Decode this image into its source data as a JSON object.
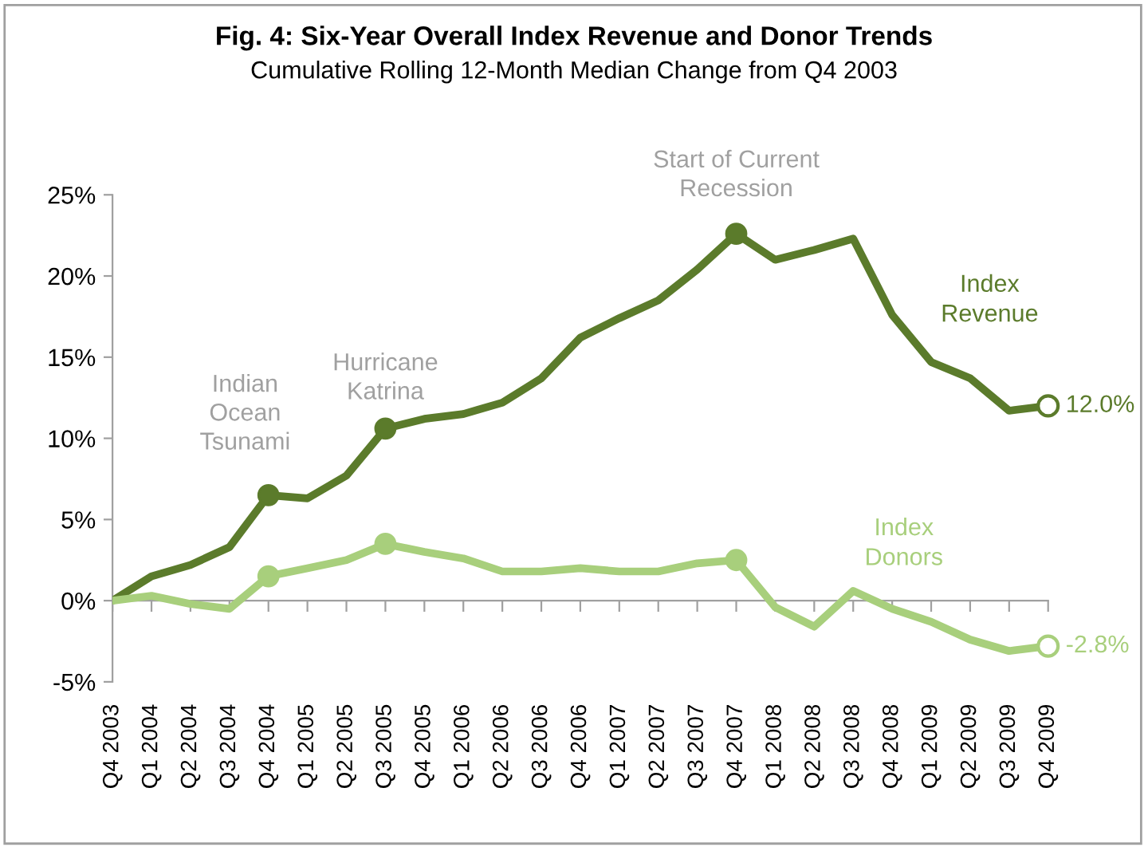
{
  "chart_data": {
    "type": "line",
    "title": "Fig. 4: Six-Year Overall Index Revenue and Donor Trends",
    "subtitle": "Cumulative Rolling 12-Month Median Change from Q4 2003",
    "categories": [
      "Q4 2003",
      "Q1 2004",
      "Q2 2004",
      "Q3 2004",
      "Q4 2004",
      "Q1 2005",
      "Q2 2005",
      "Q3 2005",
      "Q4 2005",
      "Q1 2006",
      "Q2 2006",
      "Q3 2006",
      "Q4 2006",
      "Q1 2007",
      "Q2 2007",
      "Q3 2007",
      "Q4 2007",
      "Q1 2008",
      "Q2 2008",
      "Q3 2008",
      "Q4 2008",
      "Q1 2009",
      "Q2 2009",
      "Q3 2009",
      "Q4 2009"
    ],
    "series": [
      {
        "name": "Index Revenue",
        "color": "#5b7b2b",
        "values": [
          0,
          1.5,
          2.2,
          3.3,
          6.5,
          6.3,
          7.7,
          10.6,
          11.2,
          11.5,
          12.2,
          13.7,
          16.2,
          17.4,
          18.5,
          20.4,
          22.6,
          21.0,
          21.6,
          22.3,
          17.6,
          14.7,
          13.7,
          11.7,
          12.0
        ],
        "value_labels": [
          null,
          null,
          null,
          null,
          null,
          null,
          null,
          null,
          null,
          null,
          null,
          null,
          null,
          null,
          null,
          null,
          null,
          null,
          null,
          null,
          null,
          null,
          null,
          null,
          "12.0%"
        ]
      },
      {
        "name": "Index Donors",
        "color": "#a8cf7c",
        "values": [
          0,
          0.3,
          -0.2,
          -0.5,
          1.5,
          2.0,
          2.5,
          3.5,
          3.0,
          2.6,
          1.8,
          1.8,
          2.0,
          1.8,
          1.8,
          2.3,
          2.5,
          -0.4,
          -1.6,
          0.6,
          -0.5,
          -1.3,
          -2.4,
          -3.1,
          -2.8
        ],
        "value_labels": [
          null,
          null,
          null,
          null,
          null,
          null,
          null,
          null,
          null,
          null,
          null,
          null,
          null,
          null,
          null,
          null,
          null,
          null,
          null,
          null,
          null,
          null,
          null,
          null,
          "-2.8%"
        ]
      }
    ],
    "annotations": [
      {
        "text": "Indian\nOcean\nTsunami",
        "x": "Q4 2004",
        "y": 6.5
      },
      {
        "text": "Hurricane\nKatrina",
        "x": "Q3 2005",
        "y": 10.6
      },
      {
        "text": "Start of Current\nRecession",
        "x": "Q4 2007",
        "y": 22.6
      }
    ],
    "ylim": [
      -5,
      25
    ],
    "yticks": [
      {
        "value": -5,
        "label": "-5%"
      },
      {
        "value": 0,
        "label": "0%"
      },
      {
        "value": 5,
        "label": "5%"
      },
      {
        "value": 10,
        "label": "10%"
      },
      {
        "value": 15,
        "label": "15%"
      },
      {
        "value": 20,
        "label": "20%"
      },
      {
        "value": 25,
        "label": "25%"
      }
    ],
    "marker": "none",
    "line_style": "solid"
  }
}
